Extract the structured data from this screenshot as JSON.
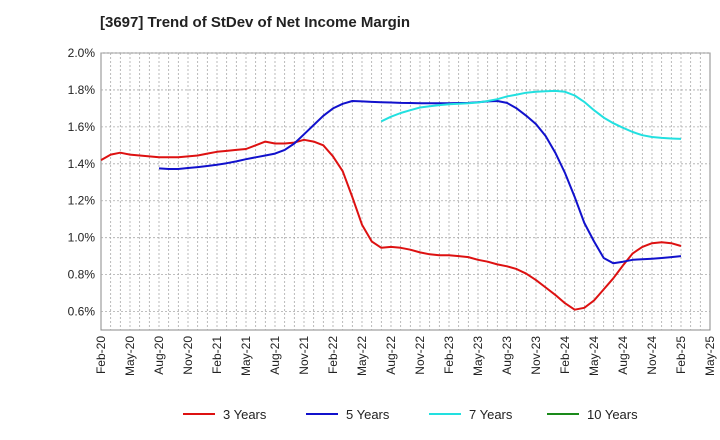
{
  "chart_data": {
    "type": "line",
    "title": "[3697]  Trend of StDev of Net Income Margin",
    "xlabel": "",
    "ylabel": "",
    "y_axis": {
      "min": 0.5,
      "max": 2.0,
      "ticks": [
        {
          "value": 0.6,
          "label": "0.6%"
        },
        {
          "value": 0.8,
          "label": "0.8%"
        },
        {
          "value": 1.0,
          "label": "1.0%"
        },
        {
          "value": 1.2,
          "label": "1.2%"
        },
        {
          "value": 1.4,
          "label": "1.4%"
        },
        {
          "value": 1.6,
          "label": "1.6%"
        },
        {
          "value": 1.8,
          "label": "1.8%"
        },
        {
          "value": 2.0,
          "label": "2.0%"
        }
      ]
    },
    "x_axis": {
      "min": "2020-02",
      "max": "2025-05",
      "ticks": [
        "Feb-20",
        "May-20",
        "Aug-20",
        "Nov-20",
        "Feb-21",
        "May-21",
        "Aug-21",
        "Nov-21",
        "Feb-22",
        "May-22",
        "Aug-22",
        "Nov-22",
        "Feb-23",
        "May-23",
        "Aug-23",
        "Nov-23",
        "Feb-24",
        "May-24",
        "Aug-24",
        "Nov-24",
        "Feb-25",
        "May-25"
      ]
    },
    "grid": true,
    "legend_position": "bottom",
    "series": [
      {
        "name": "3 Years",
        "color": "#dd1111",
        "points": [
          [
            "2020-02",
            1.42
          ],
          [
            "2020-03",
            1.45
          ],
          [
            "2020-04",
            1.46
          ],
          [
            "2020-05",
            1.45
          ],
          [
            "2020-06",
            1.445
          ],
          [
            "2020-07",
            1.44
          ],
          [
            "2020-08",
            1.435
          ],
          [
            "2020-09",
            1.435
          ],
          [
            "2020-10",
            1.435
          ],
          [
            "2020-11",
            1.44
          ],
          [
            "2020-12",
            1.445
          ],
          [
            "2021-01",
            1.455
          ],
          [
            "2021-02",
            1.465
          ],
          [
            "2021-03",
            1.47
          ],
          [
            "2021-04",
            1.475
          ],
          [
            "2021-05",
            1.48
          ],
          [
            "2021-06",
            1.5
          ],
          [
            "2021-07",
            1.52
          ],
          [
            "2021-08",
            1.51
          ],
          [
            "2021-09",
            1.51
          ],
          [
            "2021-10",
            1.515
          ],
          [
            "2021-11",
            1.53
          ],
          [
            "2021-12",
            1.52
          ],
          [
            "2022-01",
            1.5
          ],
          [
            "2022-02",
            1.44
          ],
          [
            "2022-03",
            1.36
          ],
          [
            "2022-04",
            1.22
          ],
          [
            "2022-05",
            1.07
          ],
          [
            "2022-06",
            0.98
          ],
          [
            "2022-07",
            0.945
          ],
          [
            "2022-08",
            0.95
          ],
          [
            "2022-09",
            0.945
          ],
          [
            "2022-10",
            0.935
          ],
          [
            "2022-11",
            0.92
          ],
          [
            "2022-12",
            0.91
          ],
          [
            "2023-01",
            0.905
          ],
          [
            "2023-02",
            0.905
          ],
          [
            "2023-03",
            0.9
          ],
          [
            "2023-04",
            0.895
          ],
          [
            "2023-05",
            0.88
          ],
          [
            "2023-06",
            0.87
          ],
          [
            "2023-07",
            0.855
          ],
          [
            "2023-08",
            0.845
          ],
          [
            "2023-09",
            0.83
          ],
          [
            "2023-10",
            0.805
          ],
          [
            "2023-11",
            0.77
          ],
          [
            "2023-12",
            0.73
          ],
          [
            "2024-01",
            0.69
          ],
          [
            "2024-02",
            0.645
          ],
          [
            "2024-03",
            0.61
          ],
          [
            "2024-04",
            0.62
          ],
          [
            "2024-05",
            0.66
          ],
          [
            "2024-06",
            0.72
          ],
          [
            "2024-07",
            0.78
          ],
          [
            "2024-08",
            0.85
          ],
          [
            "2024-09",
            0.915
          ],
          [
            "2024-10",
            0.95
          ],
          [
            "2024-11",
            0.97
          ],
          [
            "2024-12",
            0.975
          ],
          [
            "2025-01",
            0.97
          ],
          [
            "2025-02",
            0.955
          ]
        ]
      },
      {
        "name": "5 Years",
        "color": "#1111cc",
        "points": [
          [
            "2020-08",
            1.375
          ],
          [
            "2020-09",
            1.372
          ],
          [
            "2020-10",
            1.372
          ],
          [
            "2020-11",
            1.377
          ],
          [
            "2020-12",
            1.382
          ],
          [
            "2021-01",
            1.388
          ],
          [
            "2021-02",
            1.395
          ],
          [
            "2021-03",
            1.403
          ],
          [
            "2021-04",
            1.413
          ],
          [
            "2021-05",
            1.425
          ],
          [
            "2021-06",
            1.435
          ],
          [
            "2021-07",
            1.445
          ],
          [
            "2021-08",
            1.455
          ],
          [
            "2021-09",
            1.475
          ],
          [
            "2021-10",
            1.51
          ],
          [
            "2021-11",
            1.56
          ],
          [
            "2021-12",
            1.61
          ],
          [
            "2022-01",
            1.66
          ],
          [
            "2022-02",
            1.7
          ],
          [
            "2022-03",
            1.725
          ],
          [
            "2022-04",
            1.74
          ],
          [
            "2022-05",
            1.738
          ],
          [
            "2022-06",
            1.735
          ],
          [
            "2022-07",
            1.733
          ],
          [
            "2022-08",
            1.732
          ],
          [
            "2022-09",
            1.73
          ],
          [
            "2022-10",
            1.729
          ],
          [
            "2022-11",
            1.728
          ],
          [
            "2022-12",
            1.728
          ],
          [
            "2023-01",
            1.728
          ],
          [
            "2023-02",
            1.728
          ],
          [
            "2023-03",
            1.729
          ],
          [
            "2023-04",
            1.73
          ],
          [
            "2023-05",
            1.733
          ],
          [
            "2023-06",
            1.738
          ],
          [
            "2023-07",
            1.74
          ],
          [
            "2023-08",
            1.73
          ],
          [
            "2023-09",
            1.7
          ],
          [
            "2023-10",
            1.66
          ],
          [
            "2023-11",
            1.615
          ],
          [
            "2023-12",
            1.55
          ],
          [
            "2024-01",
            1.46
          ],
          [
            "2024-02",
            1.35
          ],
          [
            "2024-03",
            1.22
          ],
          [
            "2024-04",
            1.08
          ],
          [
            "2024-05",
            0.98
          ],
          [
            "2024-06",
            0.89
          ],
          [
            "2024-07",
            0.862
          ],
          [
            "2024-08",
            0.87
          ],
          [
            "2024-09",
            0.88
          ],
          [
            "2024-10",
            0.883
          ],
          [
            "2024-11",
            0.886
          ],
          [
            "2024-12",
            0.89
          ],
          [
            "2025-01",
            0.895
          ],
          [
            "2025-02",
            0.9
          ]
        ]
      },
      {
        "name": "7 Years",
        "color": "#22e0e0",
        "points": [
          [
            "2022-07",
            1.63
          ],
          [
            "2022-08",
            1.655
          ],
          [
            "2022-09",
            1.675
          ],
          [
            "2022-10",
            1.69
          ],
          [
            "2022-11",
            1.705
          ],
          [
            "2022-12",
            1.712
          ],
          [
            "2023-01",
            1.718
          ],
          [
            "2023-02",
            1.722
          ],
          [
            "2023-03",
            1.725
          ],
          [
            "2023-04",
            1.728
          ],
          [
            "2023-05",
            1.732
          ],
          [
            "2023-06",
            1.74
          ],
          [
            "2023-07",
            1.75
          ],
          [
            "2023-08",
            1.765
          ],
          [
            "2023-09",
            1.775
          ],
          [
            "2023-10",
            1.785
          ],
          [
            "2023-11",
            1.79
          ],
          [
            "2023-12",
            1.793
          ],
          [
            "2024-01",
            1.795
          ],
          [
            "2024-02",
            1.79
          ],
          [
            "2024-03",
            1.77
          ],
          [
            "2024-04",
            1.735
          ],
          [
            "2024-05",
            1.69
          ],
          [
            "2024-06",
            1.65
          ],
          [
            "2024-07",
            1.62
          ],
          [
            "2024-08",
            1.595
          ],
          [
            "2024-09",
            1.572
          ],
          [
            "2024-10",
            1.555
          ],
          [
            "2024-11",
            1.545
          ],
          [
            "2024-12",
            1.54
          ],
          [
            "2025-01",
            1.537
          ],
          [
            "2025-02",
            1.535
          ]
        ]
      },
      {
        "name": "10 Years",
        "color": "#1a8a1a",
        "points": []
      }
    ]
  }
}
